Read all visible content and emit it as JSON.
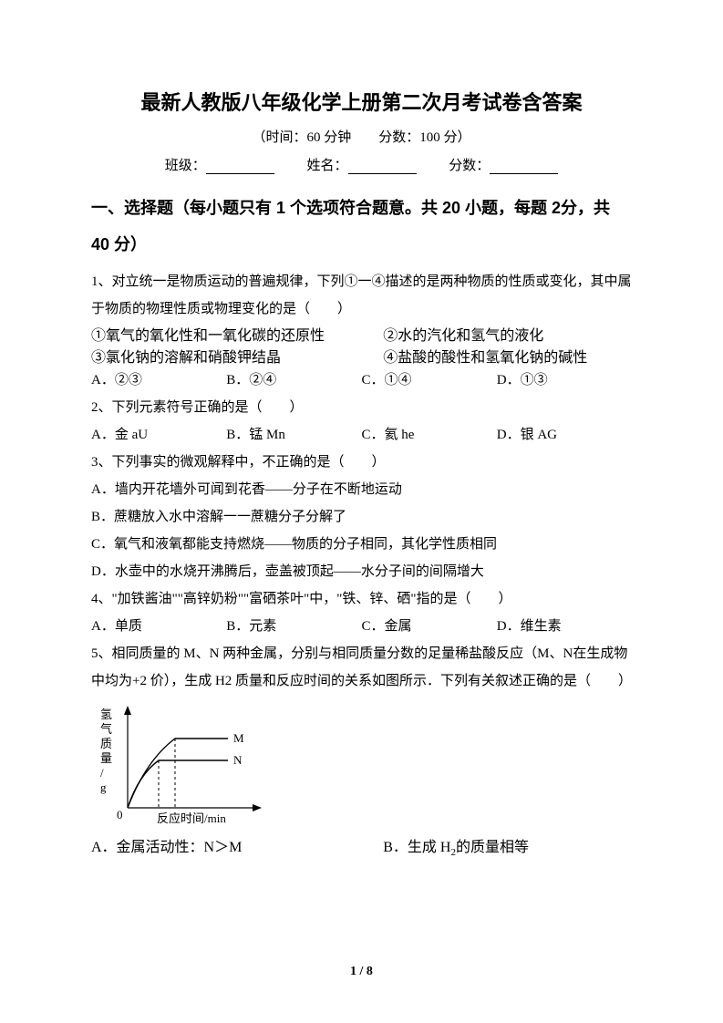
{
  "title": "最新人教版八年级化学上册第二次月考试卷含答案",
  "subtitle_prefix": "（时间：",
  "time_value": "60 分钟",
  "subtitle_mid": "　　分数：",
  "score_value": "100 分",
  "subtitle_suffix": "）",
  "info": {
    "class_label": "班级：",
    "name_label": "姓名：",
    "score_label": "分数："
  },
  "section1": "一、选择题（每小题只有 1 个选项符合题意。共 20 小题，每题 2分，共 40 分）",
  "q1": {
    "stem1": "1、对立统一是物质运动的普遍规律，下列①一④描述的是两种物质的性质或变化，其中属于物质的物理性质或物理变化的是（　　）",
    "line2a": "①氧气的氧化性和一氧化碳的还原性",
    "line2b": "②水的汽化和氢气的液化",
    "line3a": "③氯化钠的溶解和硝酸钾结晶",
    "line3b": "④盐酸的酸性和氢氧化钠的碱性",
    "A": "A．②③",
    "B": "B．②④",
    "C": "C．①④",
    "D": "D．①③"
  },
  "q2": {
    "stem": "2、下列元素符号正确的是（　　）",
    "A": "A．金 aU",
    "B": "B．锰 Mn",
    "C": "C．氦 he",
    "D": "D．银 AG"
  },
  "q3": {
    "stem": "3、下列事实的微观解释中，不正确的是（　　）",
    "A": "A．墙内开花墙外可闻到花香——分子在不断地运动",
    "B": "B．蔗糖放入水中溶解一一蔗糖分子分解了",
    "C": "C．氧气和液氧都能支持燃烧——物质的分子相同，其化学性质相同",
    "D": "D．水壶中的水烧开沸腾后，壶盖被顶起——水分子间的间隔增大"
  },
  "q4": {
    "stem": "4、\"加铁酱油\"\"高锌奶粉\"\"富硒茶叶\"中，\"铁、锌、硒\"指的是（　　）",
    "A": "A．单质",
    "B": "B．元素",
    "C": "C．金属",
    "D": "D．维生素"
  },
  "q5": {
    "stem": "5、相同质量的 M、N 两种金属，分别与相同质量分数的足量稀盐酸反应（M、N在生成物中均为+2 价），生成 H2 质量和反应时间的关系如图所示．下列有关叙述正确的是（　　）",
    "A_pre": "A．金属活动性：N＞M",
    "B_pre": "B．生成 H",
    "B_sub": "2",
    "B_post": "的质量相等"
  },
  "chart": {
    "width": 180,
    "height": 135,
    "y_label": "氢气质量/g",
    "x_label": "反应时间/min",
    "origin_label": "0",
    "series": {
      "M": {
        "label": "M",
        "color": "#000000"
      },
      "N": {
        "label": "N",
        "color": "#000000"
      }
    },
    "axis_color": "#000000",
    "dash_color": "#000000",
    "background": "#ffffff",
    "font_size": 13
  },
  "page_number": "1 / 8"
}
